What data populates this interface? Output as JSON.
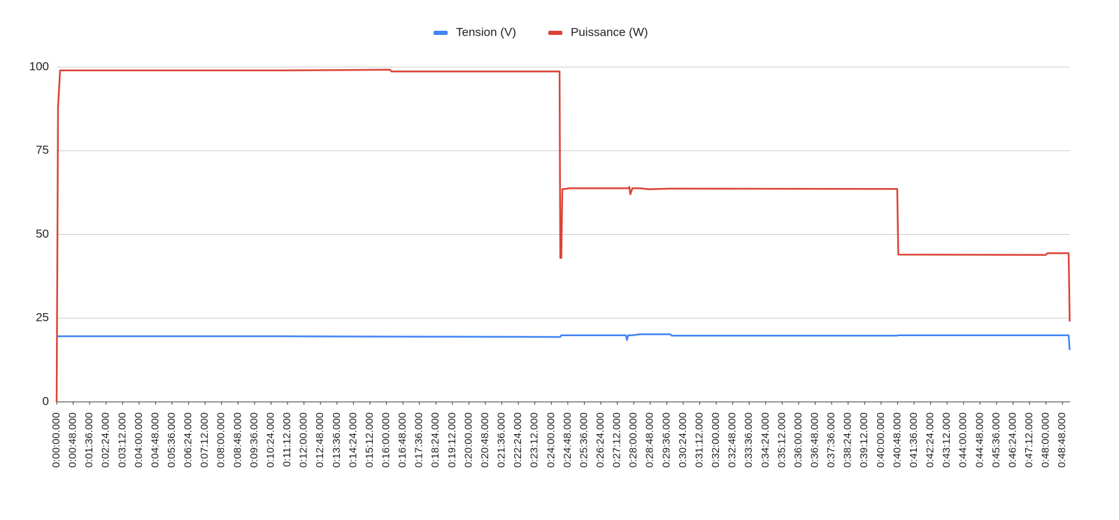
{
  "chart_data": {
    "type": "line",
    "x": [
      0,
      4,
      10,
      650,
      970,
      975,
      1464,
      1466,
      1469,
      1472,
      1494,
      1657,
      1660,
      1664,
      1667,
      1670,
      1676,
      1698,
      1724,
      1786,
      1790,
      2447,
      2450,
      2879,
      2884,
      2946,
      2949
    ],
    "series": [
      {
        "name": "Tension (V)",
        "color": "#4285f4",
        "values": [
          19.6,
          19.6,
          19.6,
          19.6,
          19.5,
          19.5,
          19.4,
          19.4,
          19.9,
          19.9,
          19.9,
          19.9,
          18.5,
          19.9,
          19.9,
          19.9,
          19.9,
          20.2,
          20.2,
          20.2,
          19.8,
          19.8,
          19.9,
          19.9,
          19.9,
          19.9,
          15.5
        ]
      },
      {
        "name": "Puissance (W)",
        "color": "#db4437",
        "values": [
          0,
          88,
          99,
          99,
          99.2,
          98.7,
          98.7,
          43,
          43,
          63.5,
          63.8,
          63.8,
          63.8,
          63.8,
          64.2,
          62,
          63.8,
          63.8,
          63.5,
          63.7,
          63.7,
          63.6,
          44,
          43.9,
          44.4,
          44.4,
          24
        ]
      }
    ],
    "xlim": [
      0,
      2950
    ],
    "xticks": [
      {
        "value": 0,
        "label": "0:00:00.000"
      },
      {
        "value": 48,
        "label": "0:00:48.000"
      },
      {
        "value": 96,
        "label": "0:01:36.000"
      },
      {
        "value": 144,
        "label": "0:02:24.000"
      },
      {
        "value": 192,
        "label": "0:03:12.000"
      },
      {
        "value": 240,
        "label": "0:04:00.000"
      },
      {
        "value": 288,
        "label": "0:04:48.000"
      },
      {
        "value": 336,
        "label": "0:05:36.000"
      },
      {
        "value": 384,
        "label": "0:06:24.000"
      },
      {
        "value": 432,
        "label": "0:07:12.000"
      },
      {
        "value": 480,
        "label": "0:08:00.000"
      },
      {
        "value": 528,
        "label": "0:08:48.000"
      },
      {
        "value": 576,
        "label": "0:09:36.000"
      },
      {
        "value": 624,
        "label": "0:10:24.000"
      },
      {
        "value": 672,
        "label": "0:11:12.000"
      },
      {
        "value": 720,
        "label": "0:12:00.000"
      },
      {
        "value": 768,
        "label": "0:12:48.000"
      },
      {
        "value": 816,
        "label": "0:13:36.000"
      },
      {
        "value": 864,
        "label": "0:14:24.000"
      },
      {
        "value": 912,
        "label": "0:15:12.000"
      },
      {
        "value": 960,
        "label": "0:16:00.000"
      },
      {
        "value": 1008,
        "label": "0:16:48.000"
      },
      {
        "value": 1056,
        "label": "0:17:36.000"
      },
      {
        "value": 1104,
        "label": "0:18:24.000"
      },
      {
        "value": 1152,
        "label": "0:19:12.000"
      },
      {
        "value": 1200,
        "label": "0:20:00.000"
      },
      {
        "value": 1248,
        "label": "0:20:48.000"
      },
      {
        "value": 1296,
        "label": "0:21:36.000"
      },
      {
        "value": 1344,
        "label": "0:22:24.000"
      },
      {
        "value": 1392,
        "label": "0:23:12.000"
      },
      {
        "value": 1440,
        "label": "0:24:00.000"
      },
      {
        "value": 1488,
        "label": "0:24:48.000"
      },
      {
        "value": 1536,
        "label": "0:25:36.000"
      },
      {
        "value": 1584,
        "label": "0:26:24.000"
      },
      {
        "value": 1632,
        "label": "0:27:12.000"
      },
      {
        "value": 1680,
        "label": "0:28:00.000"
      },
      {
        "value": 1728,
        "label": "0:28:48.000"
      },
      {
        "value": 1776,
        "label": "0:29:36.000"
      },
      {
        "value": 1824,
        "label": "0:30:24.000"
      },
      {
        "value": 1872,
        "label": "0:31:12.000"
      },
      {
        "value": 1920,
        "label": "0:32:00.000"
      },
      {
        "value": 1968,
        "label": "0:32:48.000"
      },
      {
        "value": 2016,
        "label": "0:33:36.000"
      },
      {
        "value": 2064,
        "label": "0:34:24.000"
      },
      {
        "value": 2112,
        "label": "0:35:12.000"
      },
      {
        "value": 2160,
        "label": "0:36:00.000"
      },
      {
        "value": 2208,
        "label": "0:36:48.000"
      },
      {
        "value": 2256,
        "label": "0:37:36.000"
      },
      {
        "value": 2304,
        "label": "0:38:24.000"
      },
      {
        "value": 2352,
        "label": "0:39:12.000"
      },
      {
        "value": 2400,
        "label": "0:40:00.000"
      },
      {
        "value": 2448,
        "label": "0:40:48.000"
      },
      {
        "value": 2496,
        "label": "0:41:36.000"
      },
      {
        "value": 2544,
        "label": "0:42:24.000"
      },
      {
        "value": 2592,
        "label": "0:43:12.000"
      },
      {
        "value": 2640,
        "label": "0:44:00.000"
      },
      {
        "value": 2688,
        "label": "0:44:48.000"
      },
      {
        "value": 2736,
        "label": "0:45:36.000"
      },
      {
        "value": 2784,
        "label": "0:46:24.000"
      },
      {
        "value": 2832,
        "label": "0:47:12.000"
      },
      {
        "value": 2880,
        "label": "0:48:00.000"
      },
      {
        "value": 2928,
        "label": "0:48:48.000"
      }
    ],
    "ylim": [
      0,
      100
    ],
    "yticks": [
      0,
      25,
      50,
      75,
      100
    ],
    "grid": true,
    "legend": "top"
  }
}
